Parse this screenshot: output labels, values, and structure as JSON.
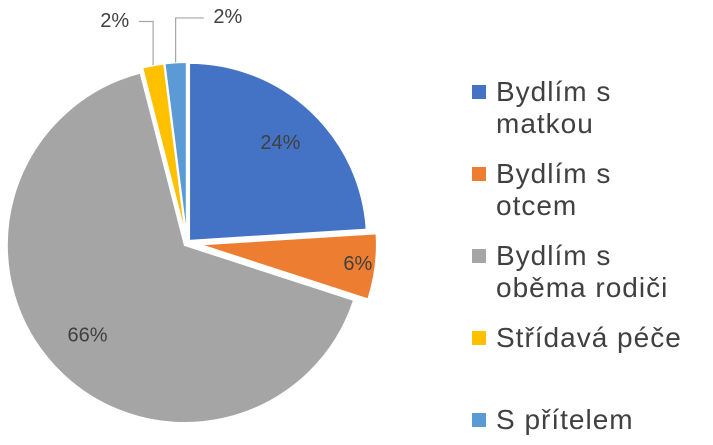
{
  "chart_data": {
    "type": "pie",
    "categories": [
      "Bydlím s matkou",
      "Bydlím s otcem",
      "Bydlím s oběma rodiči",
      "Střídavá péče",
      "S přítelem"
    ],
    "values": [
      24,
      6,
      66,
      2,
      2
    ],
    "value_labels": [
      "24%",
      "6%",
      "66%",
      "2%",
      "2%"
    ],
    "colors": [
      "#4472c4",
      "#ed7d31",
      "#a5a5a5",
      "#ffc000",
      "#5b9bd5"
    ],
    "legend": "right"
  }
}
